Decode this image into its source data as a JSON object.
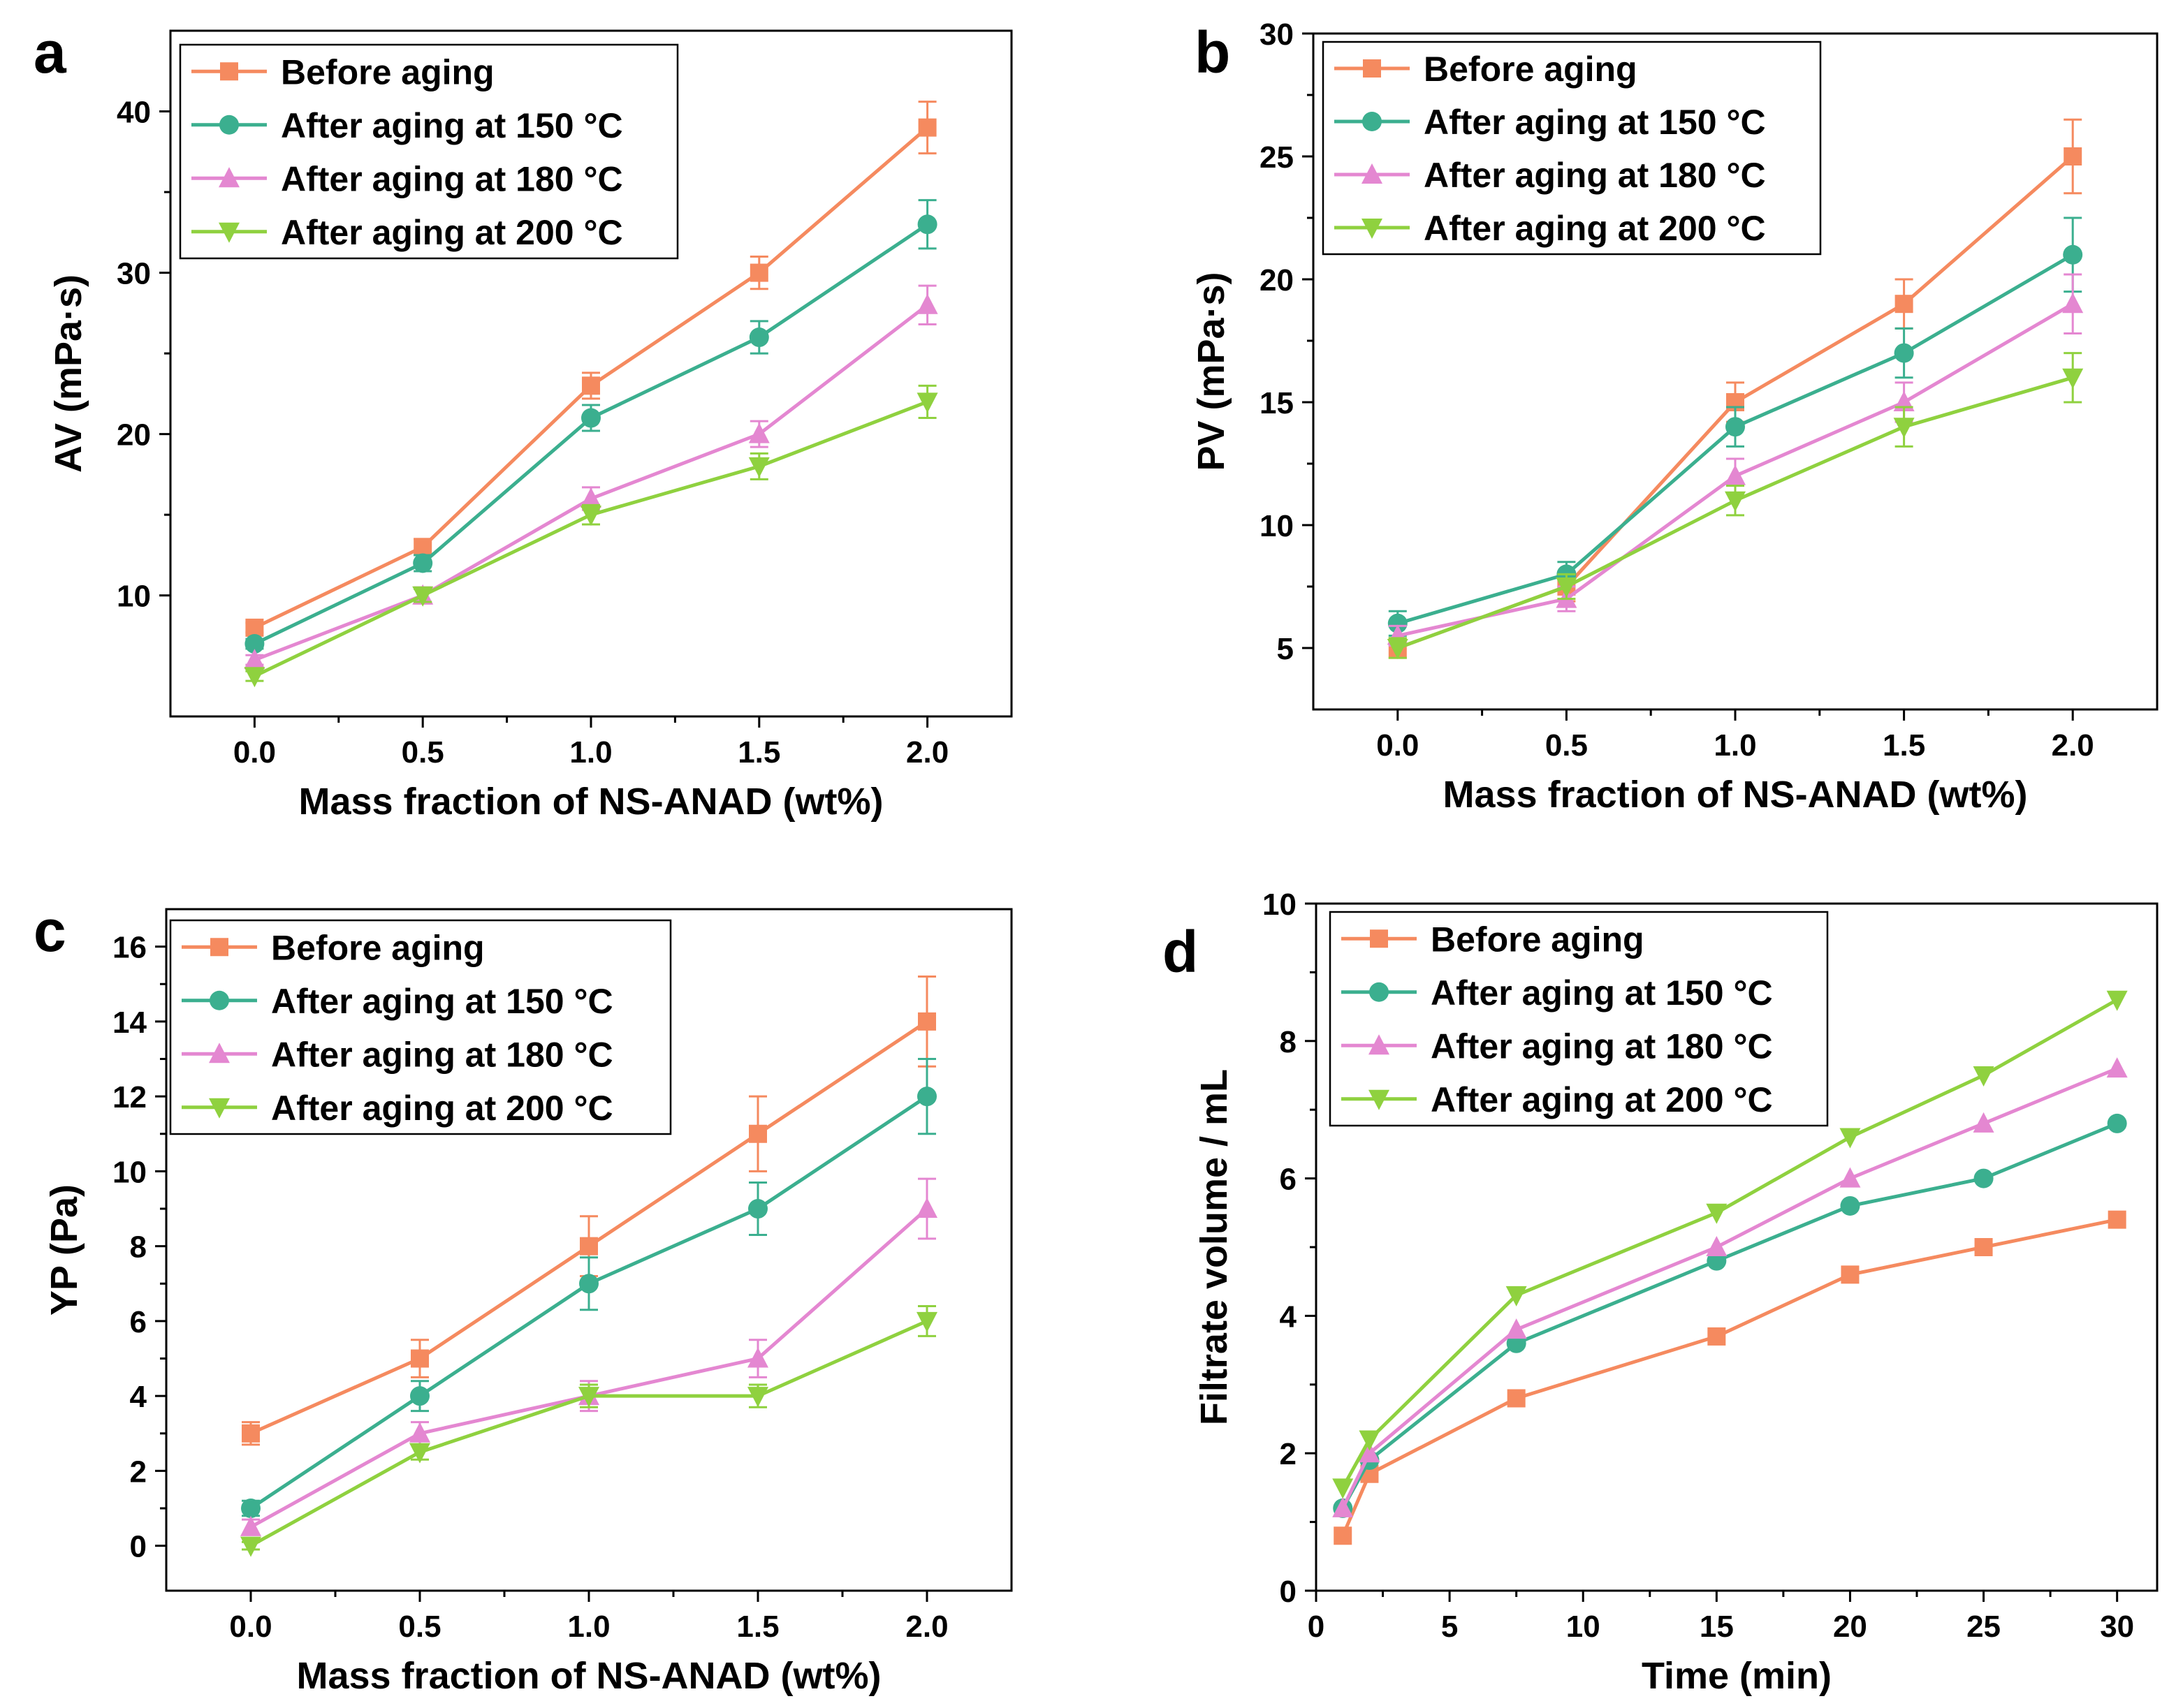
{
  "figure": {
    "colors": {
      "before": "#F58A5F",
      "a150": "#3BAF8F",
      "a180": "#E487D1",
      "a200": "#8FD13F"
    }
  },
  "chart_data": [
    {
      "panel": "a",
      "type": "line",
      "xlabel": "Mass fraction of NS-ANAD (wt%)",
      "ylabel": "AV (mPa·s)",
      "xlim": [
        -0.25,
        2.25
      ],
      "ylim": [
        2.5,
        45
      ],
      "xticks": [
        0.0,
        0.5,
        1.0,
        1.5,
        2.0
      ],
      "xtick_labels": [
        "0.0",
        "0.5",
        "1.0",
        "1.5",
        "2.0"
      ],
      "yticks": [
        10,
        20,
        30,
        40
      ],
      "ytick_labels": [
        "10",
        "20",
        "30",
        "40"
      ],
      "legend_position": "top-left",
      "x": [
        0.0,
        0.5,
        1.0,
        1.5,
        2.0
      ],
      "series": [
        {
          "name": "Before aging",
          "marker": "square",
          "color_key": "before",
          "values": [
            8,
            13,
            23,
            30,
            39
          ],
          "errors": [
            0.3,
            0.5,
            0.8,
            1.0,
            1.6
          ]
        },
        {
          "name": "After aging at 150 °C",
          "marker": "circle",
          "color_key": "a150",
          "values": [
            7,
            12,
            21,
            26,
            33
          ],
          "errors": [
            0.3,
            0.5,
            0.8,
            1.0,
            1.5
          ]
        },
        {
          "name": "After aging at 180 °C",
          "marker": "triangle-up",
          "color_key": "a180",
          "values": [
            6,
            10,
            16,
            20,
            28
          ],
          "errors": [
            0.3,
            0.5,
            0.7,
            0.8,
            1.2
          ]
        },
        {
          "name": "After aging at 200 °C",
          "marker": "triangle-down",
          "color_key": "a200",
          "values": [
            5,
            10,
            15,
            18,
            22
          ],
          "errors": [
            0.3,
            0.4,
            0.6,
            0.8,
            1.0
          ]
        }
      ]
    },
    {
      "panel": "b",
      "type": "line",
      "xlabel": "Mass fraction of NS-ANAD (wt%)",
      "ylabel": "PV (mPa·s)",
      "xlim": [
        -0.25,
        2.25
      ],
      "ylim": [
        2.5,
        30
      ],
      "xticks": [
        0.0,
        0.5,
        1.0,
        1.5,
        2.0
      ],
      "xtick_labels": [
        "0.0",
        "0.5",
        "1.0",
        "1.5",
        "2.0"
      ],
      "yticks": [
        5,
        10,
        15,
        20,
        25,
        30
      ],
      "ytick_labels": [
        "5",
        "10",
        "15",
        "20",
        "25",
        "30"
      ],
      "legend_position": "top-left",
      "x": [
        0.0,
        0.5,
        1.0,
        1.5,
        2.0
      ],
      "series": [
        {
          "name": "Before aging",
          "marker": "square",
          "color_key": "before",
          "values": [
            5,
            7.5,
            15,
            19,
            25
          ],
          "errors": [
            0.4,
            0.6,
            0.8,
            1.0,
            1.5
          ]
        },
        {
          "name": "After aging at 150 °C",
          "marker": "circle",
          "color_key": "a150",
          "values": [
            6,
            8,
            14,
            17,
            21
          ],
          "errors": [
            0.5,
            0.5,
            0.8,
            1.0,
            1.5
          ]
        },
        {
          "name": "After aging at 180 °C",
          "marker": "triangle-up",
          "color_key": "a180",
          "values": [
            5.5,
            7,
            12,
            15,
            19
          ],
          "errors": [
            0.4,
            0.5,
            0.7,
            0.8,
            1.2
          ]
        },
        {
          "name": "After aging at 200 °C",
          "marker": "triangle-down",
          "color_key": "a200",
          "values": [
            5,
            7.5,
            11,
            14,
            16
          ],
          "errors": [
            0.4,
            0.5,
            0.6,
            0.8,
            1.0
          ]
        }
      ]
    },
    {
      "panel": "c",
      "type": "line",
      "xlabel": "Mass fraction of NS-ANAD (wt%)",
      "ylabel": "YP (Pa)",
      "xlim": [
        -0.25,
        2.25
      ],
      "ylim": [
        -1.2,
        17
      ],
      "xticks": [
        0.0,
        0.5,
        1.0,
        1.5,
        2.0
      ],
      "xtick_labels": [
        "0.0",
        "0.5",
        "1.0",
        "1.5",
        "2.0"
      ],
      "yticks": [
        0,
        2,
        4,
        6,
        8,
        10,
        12,
        14,
        16
      ],
      "ytick_labels": [
        "0",
        "2",
        "4",
        "6",
        "8",
        "10",
        "12",
        "14",
        "16"
      ],
      "legend_position": "top-left",
      "x": [
        0.0,
        0.5,
        1.0,
        1.5,
        2.0
      ],
      "series": [
        {
          "name": "Before aging",
          "marker": "square",
          "color_key": "before",
          "values": [
            3,
            5,
            8,
            11,
            14
          ],
          "errors": [
            0.3,
            0.5,
            0.8,
            1.0,
            1.2
          ]
        },
        {
          "name": "After aging at 150 °C",
          "marker": "circle",
          "color_key": "a150",
          "values": [
            1,
            4,
            7,
            9,
            12
          ],
          "errors": [
            0.2,
            0.4,
            0.7,
            0.7,
            1.0
          ]
        },
        {
          "name": "After aging at 180 °C",
          "marker": "triangle-up",
          "color_key": "a180",
          "values": [
            0.5,
            3,
            4,
            5,
            9
          ],
          "errors": [
            0.2,
            0.3,
            0.4,
            0.5,
            0.8
          ]
        },
        {
          "name": "After aging at 200 °C",
          "marker": "triangle-down",
          "color_key": "a200",
          "values": [
            0,
            2.5,
            4,
            4,
            6
          ],
          "errors": [
            0.1,
            0.2,
            0.3,
            0.3,
            0.4
          ]
        }
      ]
    },
    {
      "panel": "d",
      "type": "line",
      "xlabel": "Time (min)",
      "ylabel": "Filtrate volume / mL",
      "xlim": [
        0,
        31.5
      ],
      "ylim": [
        0,
        10
      ],
      "xticks": [
        0,
        5,
        10,
        15,
        20,
        25,
        30
      ],
      "xtick_labels": [
        "0",
        "5",
        "10",
        "15",
        "20",
        "25",
        "30"
      ],
      "yticks": [
        0,
        2,
        4,
        6,
        8,
        10
      ],
      "ytick_labels": [
        "0",
        "2",
        "4",
        "6",
        "8",
        "10"
      ],
      "legend_position": "top-left",
      "x": [
        1,
        2,
        7.5,
        15,
        20,
        25,
        30
      ],
      "series": [
        {
          "name": "Before aging",
          "marker": "square",
          "color_key": "before",
          "values": [
            0.8,
            1.7,
            2.8,
            3.7,
            4.6,
            5.0,
            5.4
          ]
        },
        {
          "name": "After aging at 150 °C",
          "marker": "circle",
          "color_key": "a150",
          "values": [
            1.2,
            1.9,
            3.6,
            4.8,
            5.6,
            6.0,
            6.8
          ]
        },
        {
          "name": "After aging at 180 °C",
          "marker": "triangle-up",
          "color_key": "a180",
          "values": [
            1.2,
            2.0,
            3.8,
            5.0,
            6.0,
            6.8,
            7.6
          ]
        },
        {
          "name": "After aging at 200 °C",
          "marker": "triangle-down",
          "color_key": "a200",
          "values": [
            1.5,
            2.2,
            4.3,
            5.5,
            6.6,
            7.5,
            8.6
          ]
        }
      ]
    }
  ]
}
